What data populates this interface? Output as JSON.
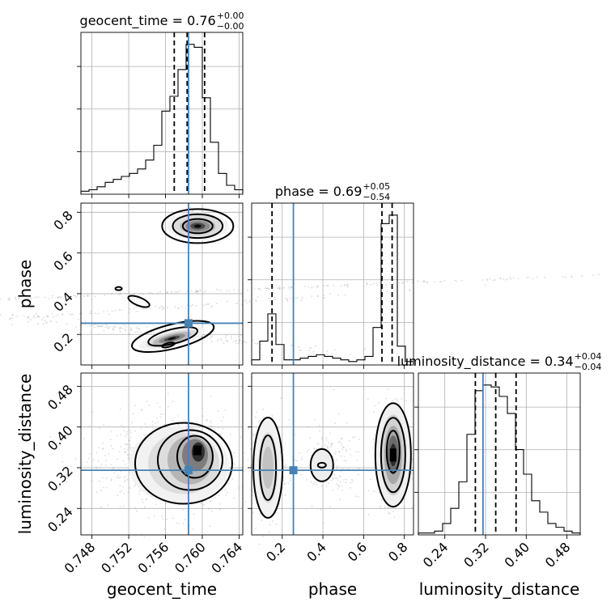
{
  "chart_data": {
    "type": "corner",
    "parameters": [
      "geocent_time",
      "phase",
      "luminosity_distance"
    ],
    "truth": {
      "geocent_time": 0.7585,
      "phase": 0.255,
      "luminosity_distance": 0.315
    },
    "titles": [
      {
        "param": "geocent_time",
        "text": "geocent_time = 0.76",
        "sup": "+0.00",
        "sub": "−0.00"
      },
      {
        "param": "phase",
        "text": "phase = 0.69",
        "sup": "+0.05",
        "sub": "−0.54"
      },
      {
        "param": "luminosity_distance",
        "text": "luminosity_distance = 0.34",
        "sup": "+0.04",
        "sub": "−0.04"
      }
    ],
    "axes": {
      "geocent_time": {
        "lim": [
          0.7468,
          0.7644
        ],
        "ticks": [
          "0.748",
          "0.752",
          "0.756",
          "0.760",
          "0.764"
        ],
        "tick_values": [
          0.748,
          0.752,
          0.756,
          0.76,
          0.764
        ]
      },
      "phase": {
        "lim": [
          0.05,
          0.845
        ],
        "ticks": [
          "0.2",
          "0.4",
          "0.6",
          "0.8"
        ],
        "tick_values": [
          0.2,
          0.4,
          0.6,
          0.8
        ]
      },
      "luminosity_distance": {
        "lim": [
          0.188,
          0.506
        ],
        "ticks": [
          "0.24",
          "0.32",
          "0.40",
          "0.48"
        ],
        "tick_values": [
          0.24,
          0.32,
          0.4,
          0.48
        ]
      }
    },
    "histograms": {
      "geocent_time": {
        "edges_range": [
          0.7468,
          0.7644
        ],
        "counts": [
          2,
          3,
          5,
          8,
          10,
          12,
          14,
          17,
          23,
          33,
          56,
          66,
          84,
          101,
          99,
          65,
          35,
          14,
          6,
          3
        ],
        "quantiles": [
          0.75695,
          0.75835,
          0.76025
        ]
      },
      "phase": {
        "edges_range": [
          0.05,
          0.845
        ],
        "counts": [
          3,
          14,
          30,
          12,
          3,
          3,
          4,
          5,
          6,
          5,
          4,
          3,
          2,
          3,
          5,
          22,
          83,
          88,
          11,
          2
        ],
        "quantiles": [
          0.15,
          0.69,
          0.74
        ]
      },
      "luminosity_distance": {
        "edges_range": [
          0.188,
          0.506
        ],
        "counts": [
          1,
          1,
          2,
          6,
          14,
          28,
          53,
          76,
          79,
          78,
          73,
          64,
          45,
          32,
          18,
          12,
          6,
          4,
          2,
          1
        ],
        "quantiles": [
          0.3,
          0.34,
          0.38
        ]
      }
    },
    "grid": true
  }
}
